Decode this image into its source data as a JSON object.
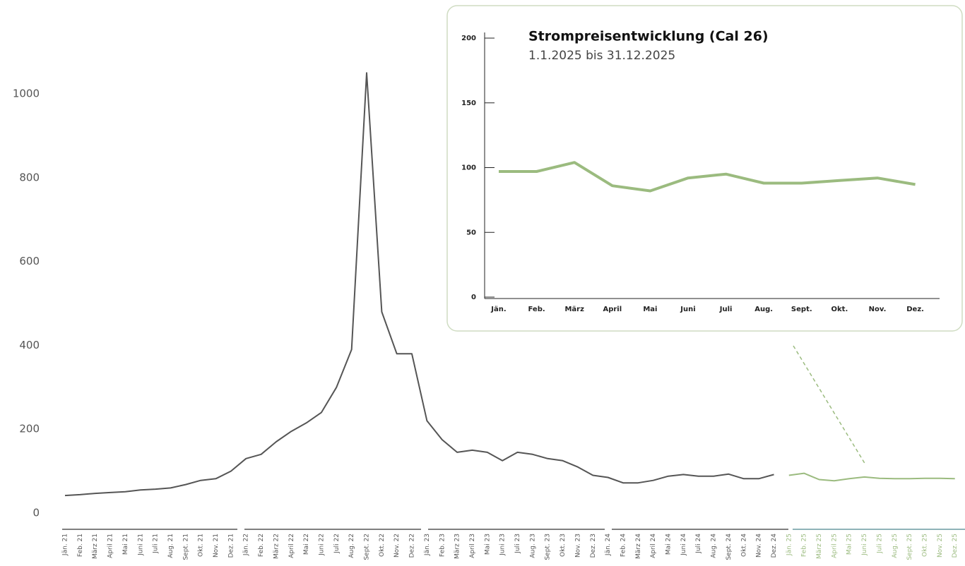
{
  "chart_data": [
    {
      "type": "line",
      "categories": [
        "Jän. 21",
        "Feb. 21",
        "März 21",
        "April 21",
        "Mai 21",
        "Juni 21",
        "Juli 21",
        "Aug. 21",
        "Sept. 21",
        "Okt. 21",
        "Nov. 21",
        "Dez. 21",
        "Jän. 22",
        "Feb. 22",
        "März 22",
        "April 22",
        "Mai 22",
        "Juni 22",
        "Juli 22",
        "Aug. 22",
        "Sept. 22",
        "Okt. 22",
        "Nov. 22",
        "Dez. 22",
        "Jän. 23",
        "Feb. 23",
        "März 23",
        "April 23",
        "Mai 23",
        "Juni 23",
        "Juli 23",
        "Aug. 23",
        "Sept. 23",
        "Okt. 23",
        "Nov. 23",
        "Dez. 23",
        "Jän. 24",
        "Feb. 24",
        "März 24",
        "April 24",
        "Mai 24",
        "Juni 24",
        "Juli 24",
        "Aug. 24",
        "Sept. 24",
        "Okt. 24",
        "Nov. 24",
        "Dez. 24",
        "Jän. 25",
        "Feb. 25",
        "März 25",
        "April 25",
        "Mai 25",
        "Juni 25",
        "Juli 25",
        "Aug. 25",
        "Sept. 25",
        "Okt. 25",
        "Nov. 25",
        "Dez. 25"
      ],
      "series": [
        {
          "color": "#555555",
          "values": [
            42,
            44,
            47,
            49,
            51,
            55,
            57,
            60,
            68,
            78,
            82,
            100,
            130,
            140,
            170,
            195,
            215,
            240,
            300,
            390,
            1050,
            480,
            380,
            380,
            220,
            175,
            145,
            150,
            145,
            125,
            145,
            140,
            130,
            125,
            110,
            90,
            85,
            72,
            72,
            78,
            88,
            92,
            88,
            88,
            93,
            82,
            82,
            92,
            null,
            null,
            null,
            null,
            null,
            null,
            null,
            null,
            null,
            null,
            null,
            null
          ]
        },
        {
          "color": "#9bbb7f",
          "values": [
            null,
            null,
            null,
            null,
            null,
            null,
            null,
            null,
            null,
            null,
            null,
            null,
            null,
            null,
            null,
            null,
            null,
            null,
            null,
            null,
            null,
            null,
            null,
            null,
            null,
            null,
            null,
            null,
            null,
            null,
            null,
            null,
            null,
            null,
            null,
            null,
            null,
            null,
            null,
            null,
            null,
            null,
            null,
            null,
            null,
            null,
            null,
            null,
            90,
            95,
            80,
            77,
            82,
            86,
            83,
            82,
            82,
            83,
            83,
            82
          ]
        }
      ],
      "ylim": [
        0,
        1080
      ],
      "yticks": [
        0,
        200,
        400,
        600,
        800,
        1000
      ]
    },
    {
      "type": "line",
      "title": "Strompreisentwicklung (Cal 26)",
      "subtitle": "1.1.2025 bis 31.12.2025",
      "categories": [
        "Jän.",
        "Feb.",
        "März",
        "April",
        "Mai",
        "Juni",
        "Juli",
        "Aug.",
        "Sept.",
        "Okt.",
        "Nov.",
        "Dez."
      ],
      "series": [
        {
          "color": "#9bbb7f",
          "values": [
            97,
            97,
            104,
            86,
            82,
            92,
            95,
            88,
            88,
            90,
            92,
            87
          ]
        }
      ],
      "ylim": [
        0,
        200
      ],
      "yticks": [
        0,
        50,
        100,
        150,
        200
      ]
    }
  ]
}
